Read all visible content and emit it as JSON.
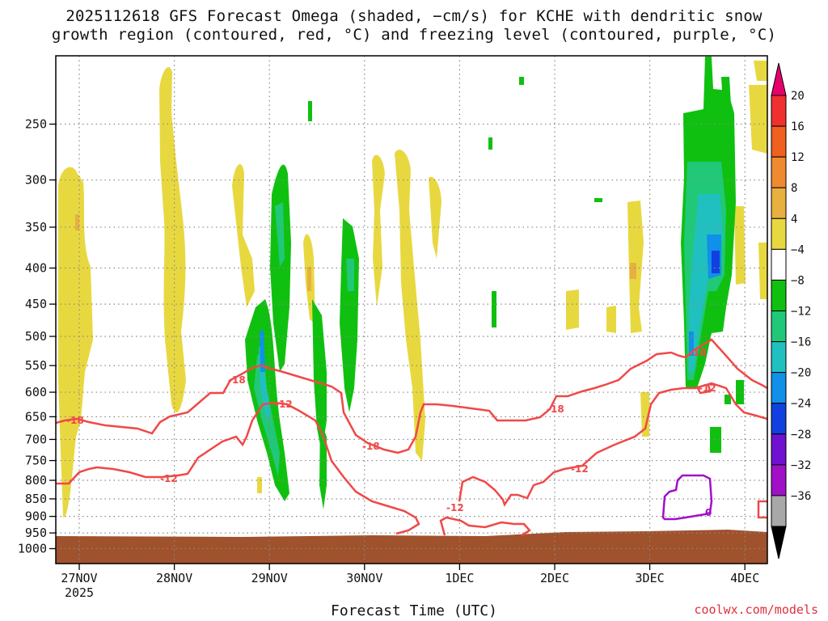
{
  "chart_data": {
    "type": "heatmap",
    "title_line1": "2025112618 GFS Forecast Omega (shaded, −cm/s) for KCHE with dendritic snow",
    "title_line2": "growth region (contoured, red, °C) and freezing level (contoured, purple, °C)",
    "xlabel": "Forecast Time (UTC)",
    "ylabel": "",
    "x_ticks": [
      "27NOV",
      "28NOV",
      "29NOV",
      "30NOV",
      "1DEC",
      "2DEC",
      "3DEC",
      "4DEC"
    ],
    "x_tick_sublabel": "2025",
    "y_ticks": [
      "250",
      "300",
      "350",
      "400",
      "450",
      "500",
      "550",
      "600",
      "650",
      "700",
      "750",
      "800",
      "850",
      "900",
      "950",
      "1000"
    ],
    "colorbar": {
      "labels": [
        "20",
        "16",
        "12",
        "8",
        "4",
        "−4",
        "−8",
        "−12",
        "−16",
        "−20",
        "−24",
        "−28",
        "−32",
        "−36"
      ],
      "colors": [
        "#e8006a",
        "#f03030",
        "#f06020",
        "#f08a30",
        "#e8b040",
        "#e8d840",
        "#ffffff",
        "#10c010",
        "#20c878",
        "#20c0c0",
        "#1090e8",
        "#1040e0",
        "#7010d0",
        "#a010c8",
        "#a8a8a8",
        "#000000"
      ]
    },
    "contours": {
      "dendritic_red": [
        "-18",
        "-12"
      ],
      "freezing_purple": [
        "0"
      ]
    },
    "contour_labels": [
      "-18",
      "-18",
      "-18",
      "-18",
      "-18",
      "-12",
      "-12",
      "-12",
      "-12",
      "-12",
      "0"
    ],
    "credit": "coolwx.com/models"
  }
}
